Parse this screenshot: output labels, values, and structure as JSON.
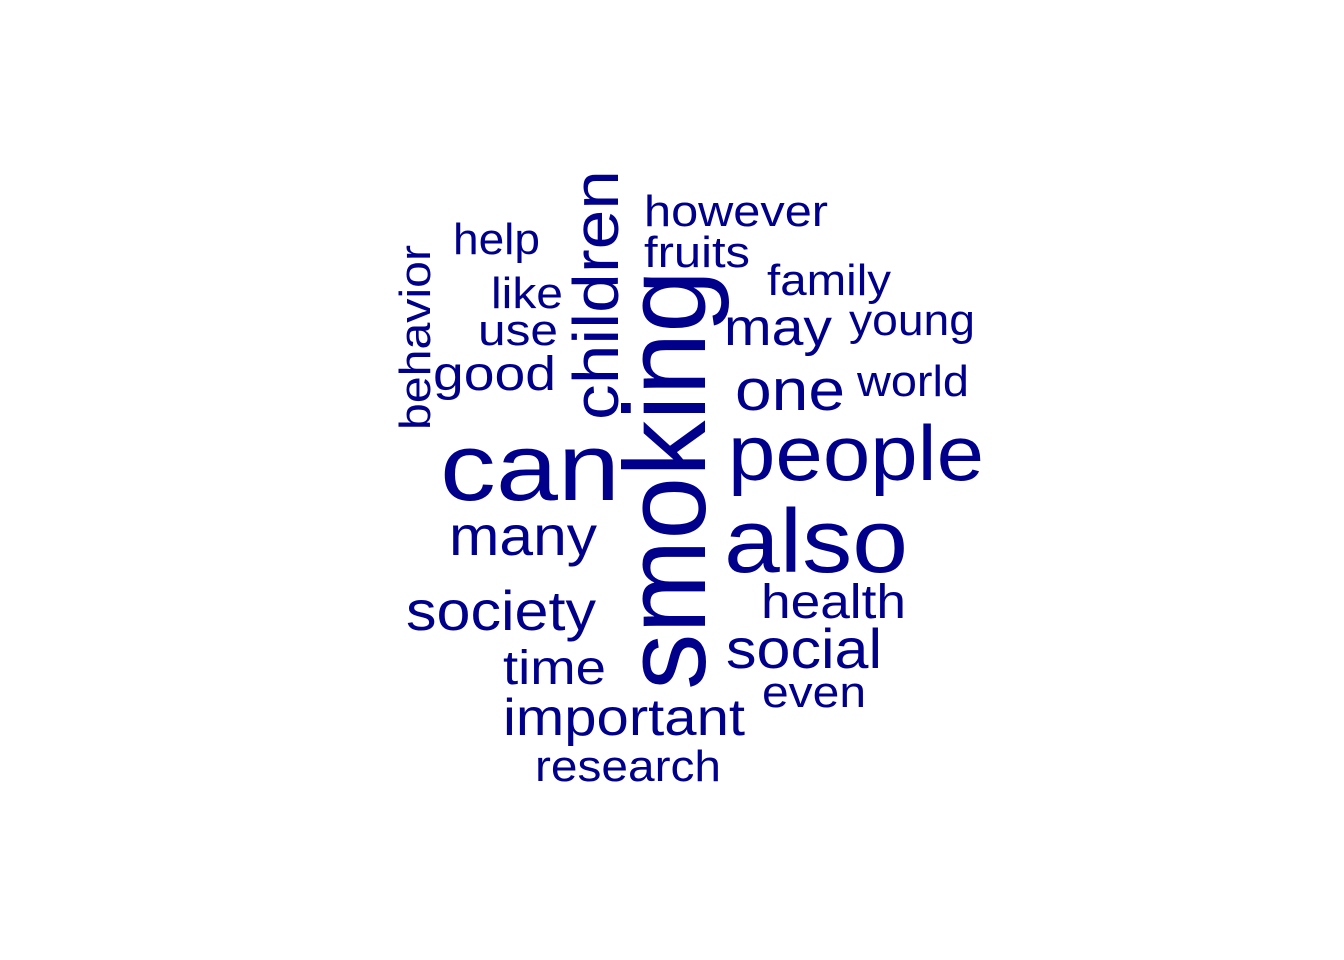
{
  "word_cloud": {
    "color": "#00008b",
    "words": [
      {
        "text": "smoking",
        "orientation": "vertical"
      },
      {
        "text": "can",
        "orientation": "horizontal"
      },
      {
        "text": "people",
        "orientation": "horizontal"
      },
      {
        "text": "also",
        "orientation": "horizontal"
      },
      {
        "text": "children",
        "orientation": "vertical"
      },
      {
        "text": "many",
        "orientation": "horizontal"
      },
      {
        "text": "society",
        "orientation": "horizontal"
      },
      {
        "text": "social",
        "orientation": "horizontal"
      },
      {
        "text": "important",
        "orientation": "horizontal"
      },
      {
        "text": "one",
        "orientation": "horizontal"
      },
      {
        "text": "may",
        "orientation": "horizontal"
      },
      {
        "text": "health",
        "orientation": "horizontal"
      },
      {
        "text": "time",
        "orientation": "horizontal"
      },
      {
        "text": "good",
        "orientation": "horizontal"
      },
      {
        "text": "behavior",
        "orientation": "vertical"
      },
      {
        "text": "however",
        "orientation": "horizontal"
      },
      {
        "text": "fruits",
        "orientation": "horizontal"
      },
      {
        "text": "family",
        "orientation": "horizontal"
      },
      {
        "text": "young",
        "orientation": "horizontal"
      },
      {
        "text": "world",
        "orientation": "horizontal"
      },
      {
        "text": "help",
        "orientation": "horizontal"
      },
      {
        "text": "like",
        "orientation": "horizontal"
      },
      {
        "text": "use",
        "orientation": "horizontal"
      },
      {
        "text": "even",
        "orientation": "horizontal"
      },
      {
        "text": "research",
        "orientation": "horizontal"
      }
    ]
  }
}
